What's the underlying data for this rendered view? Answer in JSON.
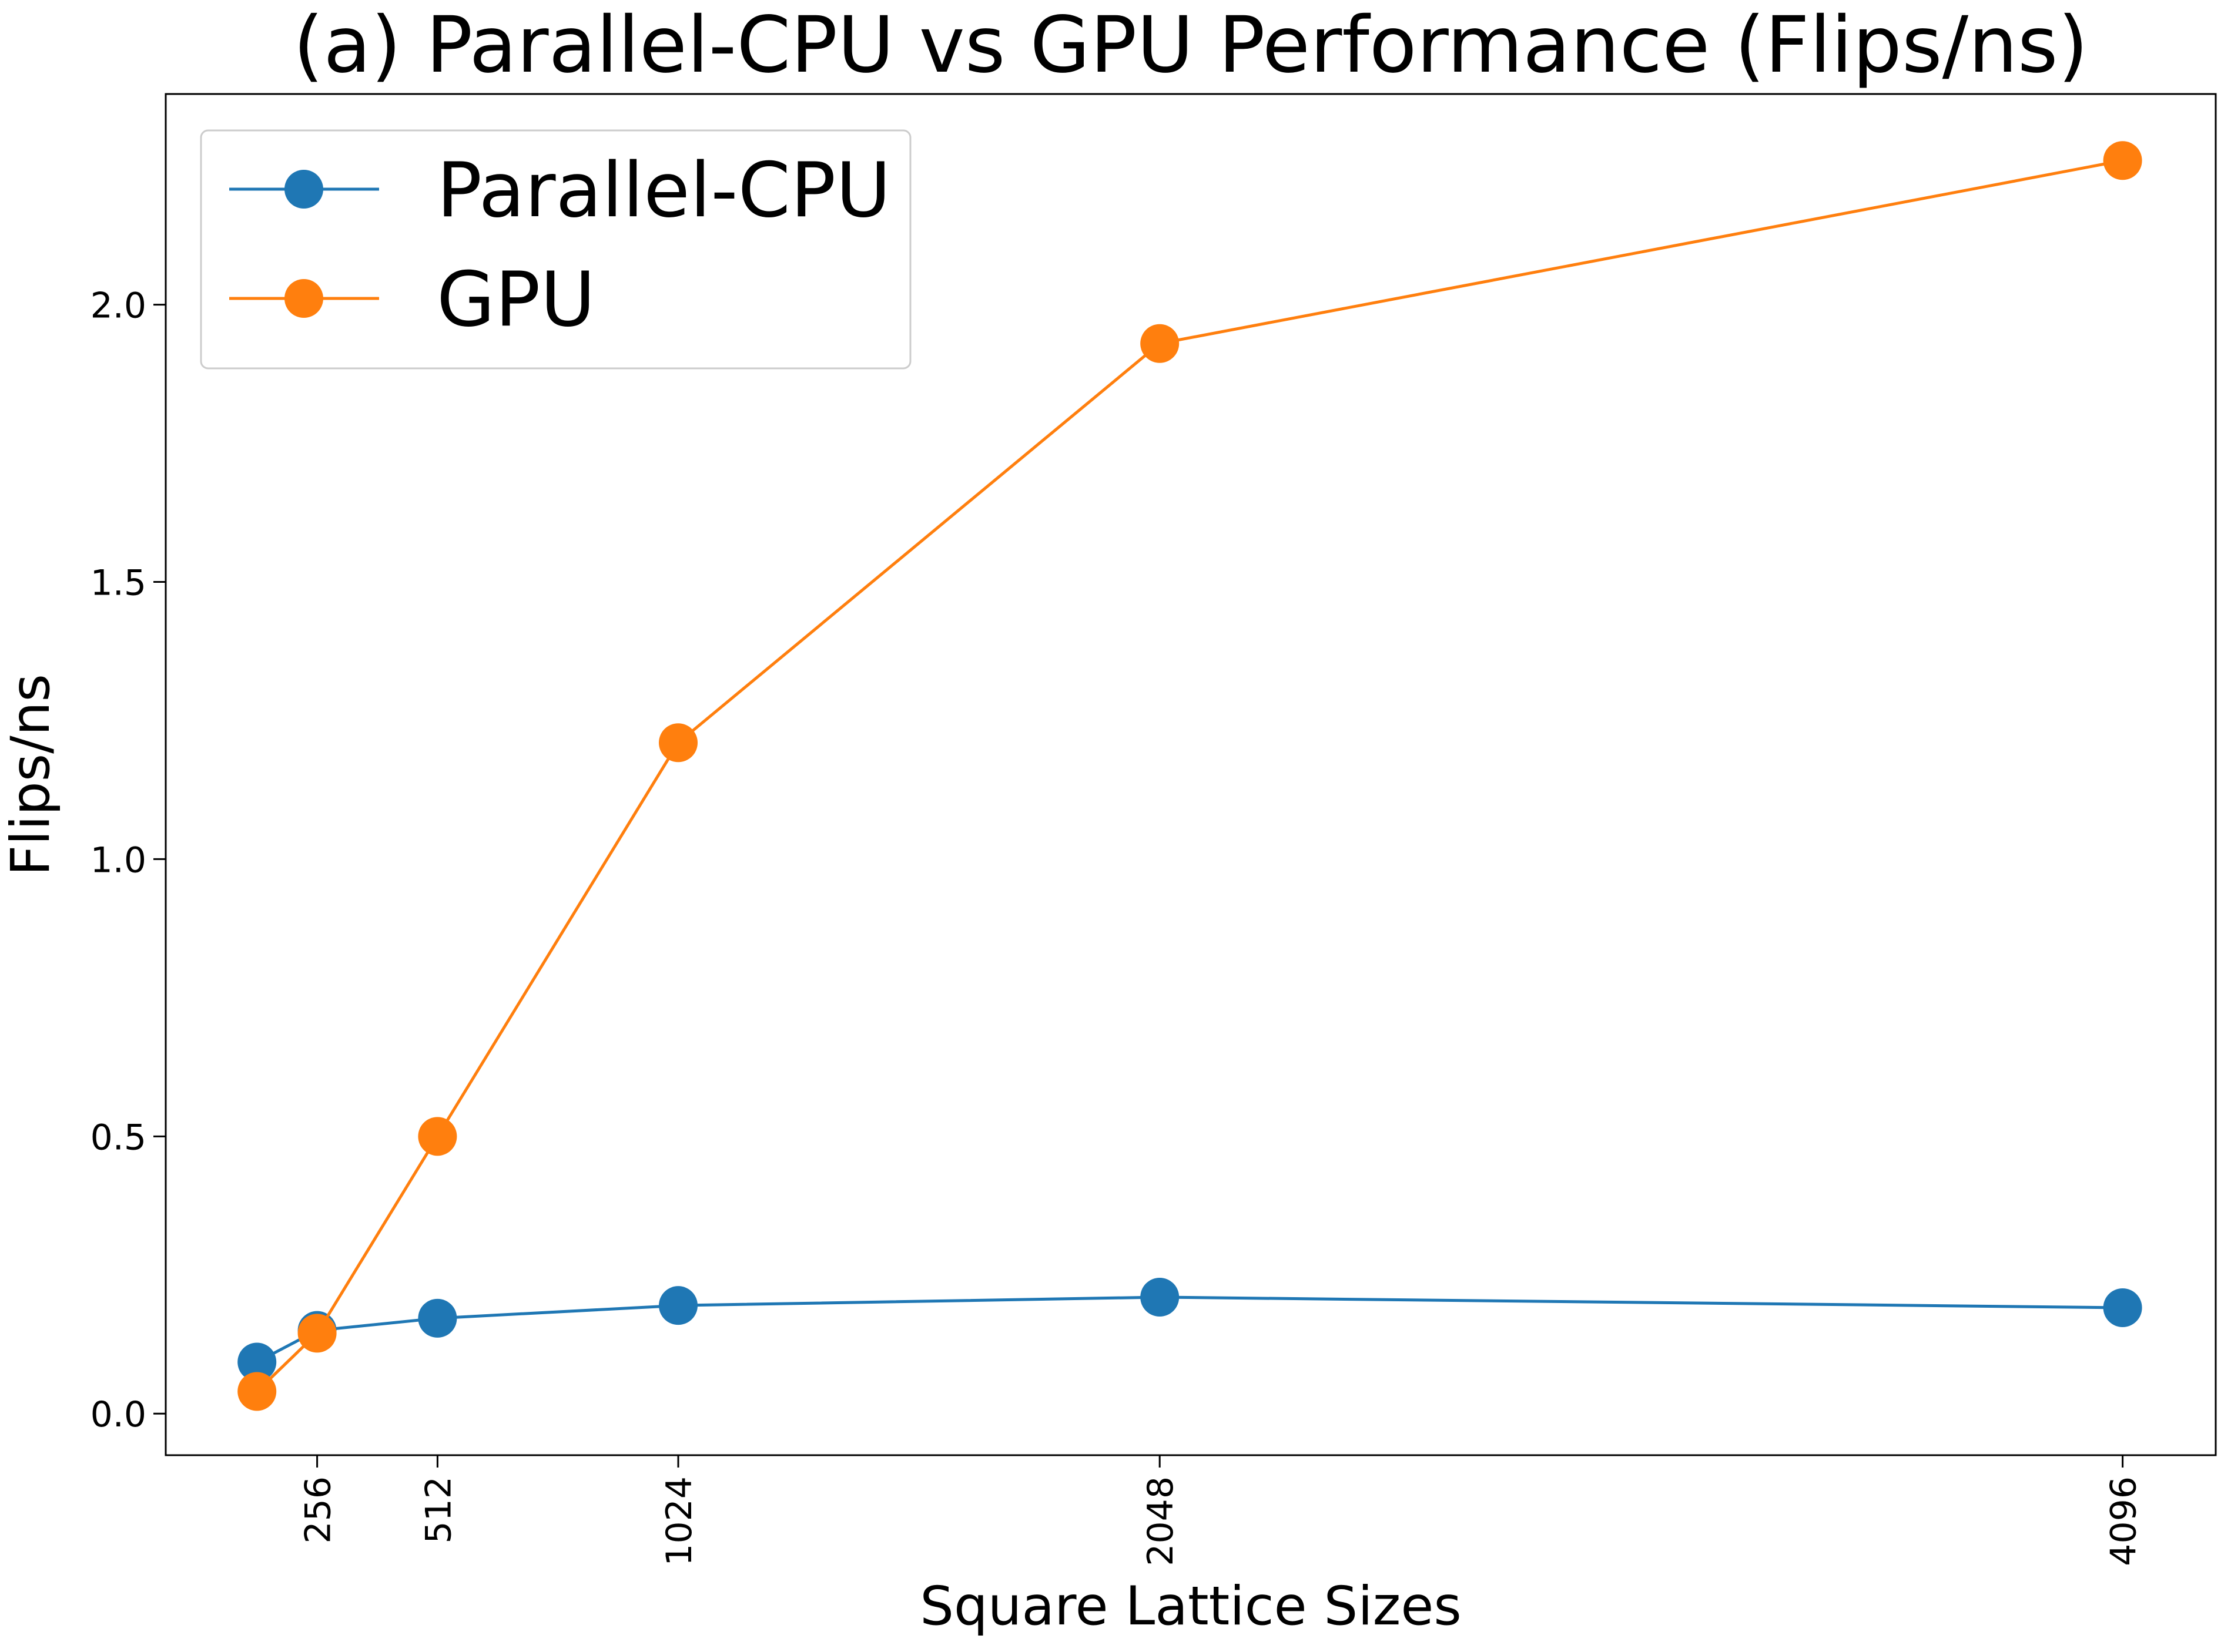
{
  "chart_data": {
    "type": "line",
    "title": "(a) Parallel-CPU vs GPU Performance (Flips/ns)",
    "xlabel": "Square Lattice Sizes",
    "ylabel": "Flips/ns",
    "x": [
      128,
      256,
      512,
      1024,
      2048,
      4096
    ],
    "xticks": [
      256,
      512,
      1024,
      2048,
      4096
    ],
    "xlim": [
      -66,
      4294
    ],
    "yticks": [
      0.0,
      0.5,
      1.0,
      1.5,
      2.0
    ],
    "ytick_labels": [
      "0.0",
      "0.5",
      "1.0",
      "1.5",
      "2.0"
    ],
    "ylim": [
      -0.075,
      2.38
    ],
    "grid": false,
    "legend_position": "top-left",
    "series": [
      {
        "name": "Parallel-CPU",
        "color": "#1f77b4",
        "values": [
          0.093,
          0.15,
          0.172,
          0.195,
          0.21,
          0.191
        ]
      },
      {
        "name": "GPU",
        "color": "#ff7f0e",
        "values": [
          0.04,
          0.145,
          0.5,
          1.21,
          1.93,
          2.26
        ]
      }
    ]
  }
}
